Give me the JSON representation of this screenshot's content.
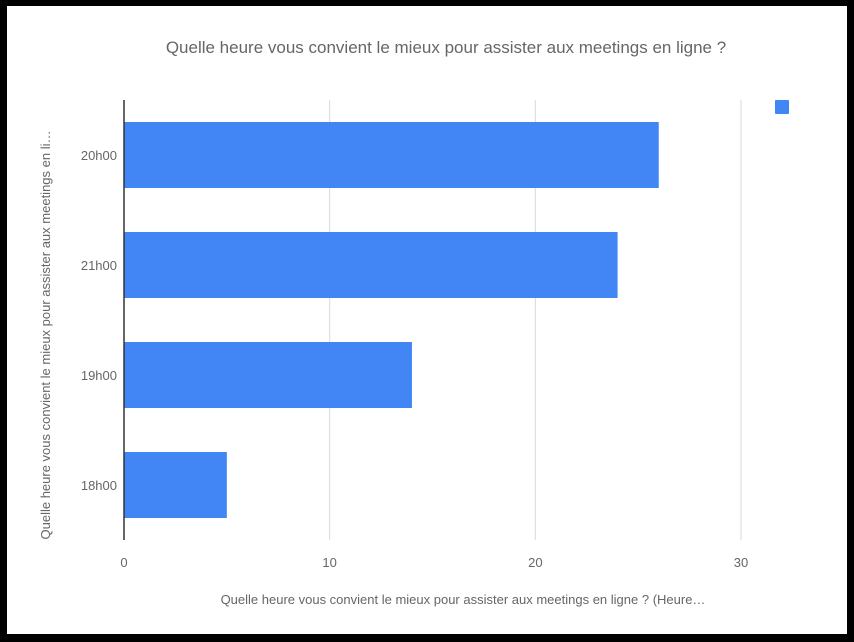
{
  "chart_data": {
    "type": "bar",
    "orientation": "horizontal",
    "title": "Quelle heure vous convient le mieux pour assister aux meetings en ligne ?",
    "xlabel": "Quelle heure vous convient le mieux pour assister aux meetings en ligne ? (Heure…",
    "ylabel": "Quelle heure vous convient le mieux pour assister aux meetings en li…",
    "categories": [
      "20h00",
      "21h00",
      "19h00",
      "18h00"
    ],
    "values": [
      26,
      24,
      14,
      5
    ],
    "xlim": [
      0,
      32
    ],
    "xticks": [
      "0",
      "10",
      "20",
      "30"
    ],
    "xtick_values": [
      0,
      10,
      20,
      30
    ],
    "grid": true,
    "legend": "top-right",
    "series_color": "#4285f4"
  }
}
